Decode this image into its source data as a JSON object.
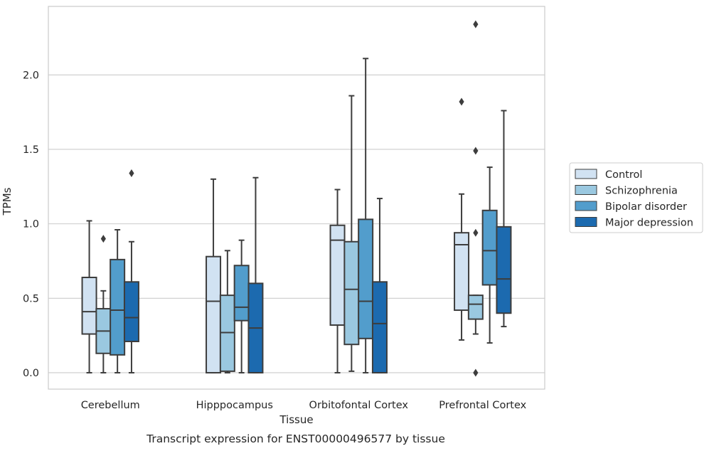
{
  "chart_data": {
    "type": "box",
    "xlabel": "Tissue",
    "ylabel": "TPMs",
    "caption": "Transcript expression for ENST00000496577 by tissue",
    "ylim": [
      -0.11,
      2.46
    ],
    "yticks": [
      0.0,
      0.5,
      1.0,
      1.5,
      2.0
    ],
    "ytick_labels": [
      "0.0",
      "0.5",
      "1.0",
      "1.5",
      "2.0"
    ],
    "grid": "horizontal",
    "legend_position": "right",
    "categories": [
      "Cerebellum",
      "Hipppocampus",
      "Orbitofontal Cortex",
      "Prefrontal Cortex"
    ],
    "series": [
      {
        "name": "Control",
        "color": "#d1e2f2",
        "boxes": [
          {
            "whisker_low": 0.0,
            "q1": 0.26,
            "median": 0.41,
            "q3": 0.64,
            "whisker_high": 1.02,
            "outliers": []
          },
          {
            "whisker_low": 0.0,
            "q1": 0.0,
            "median": 0.48,
            "q3": 0.78,
            "whisker_high": 1.3,
            "outliers": []
          },
          {
            "whisker_low": 0.0,
            "q1": 0.32,
            "median": 0.89,
            "q3": 0.99,
            "whisker_high": 1.23,
            "outliers": []
          },
          {
            "whisker_low": 0.22,
            "q1": 0.42,
            "median": 0.86,
            "q3": 0.94,
            "whisker_high": 1.2,
            "outliers": [
              1.82
            ]
          }
        ]
      },
      {
        "name": "Schizophrenia",
        "color": "#9ac8e0",
        "boxes": [
          {
            "whisker_low": 0.0,
            "q1": 0.13,
            "median": 0.28,
            "q3": 0.43,
            "whisker_high": 0.55,
            "outliers": [
              0.9
            ]
          },
          {
            "whisker_low": 0.0,
            "q1": 0.01,
            "median": 0.27,
            "q3": 0.52,
            "whisker_high": 0.82,
            "outliers": []
          },
          {
            "whisker_low": 0.01,
            "q1": 0.19,
            "median": 0.56,
            "q3": 0.88,
            "whisker_high": 1.86,
            "outliers": []
          },
          {
            "whisker_low": 0.26,
            "q1": 0.36,
            "median": 0.46,
            "q3": 0.52,
            "whisker_high": 0.52,
            "outliers": [
              0.0,
              0.94,
              1.49,
              2.34
            ]
          }
        ]
      },
      {
        "name": "Bipolar disorder",
        "color": "#529dcc",
        "boxes": [
          {
            "whisker_low": 0.0,
            "q1": 0.12,
            "median": 0.42,
            "q3": 0.76,
            "whisker_high": 0.96,
            "outliers": []
          },
          {
            "whisker_low": 0.0,
            "q1": 0.35,
            "median": 0.44,
            "q3": 0.72,
            "whisker_high": 0.89,
            "outliers": []
          },
          {
            "whisker_low": 0.0,
            "q1": 0.23,
            "median": 0.48,
            "q3": 1.03,
            "whisker_high": 2.11,
            "outliers": []
          },
          {
            "whisker_low": 0.2,
            "q1": 0.59,
            "median": 0.82,
            "q3": 1.09,
            "whisker_high": 1.38,
            "outliers": []
          }
        ]
      },
      {
        "name": "Major depression",
        "color": "#1c6aaf",
        "boxes": [
          {
            "whisker_low": 0.0,
            "q1": 0.21,
            "median": 0.37,
            "q3": 0.61,
            "whisker_high": 0.88,
            "outliers": [
              1.34
            ]
          },
          {
            "whisker_low": 0.0,
            "q1": 0.0,
            "median": 0.3,
            "q3": 0.6,
            "whisker_high": 1.31,
            "outliers": []
          },
          {
            "whisker_low": 0.0,
            "q1": 0.0,
            "median": 0.33,
            "q3": 0.61,
            "whisker_high": 1.17,
            "outliers": []
          },
          {
            "whisker_low": 0.31,
            "q1": 0.4,
            "median": 0.63,
            "q3": 0.98,
            "whisker_high": 1.76,
            "outliers": []
          }
        ]
      }
    ]
  }
}
